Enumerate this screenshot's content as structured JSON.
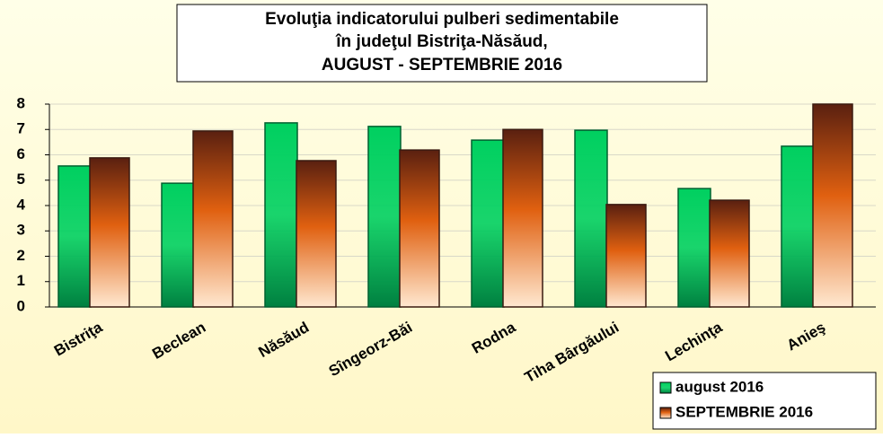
{
  "chart_data": {
    "type": "bar",
    "title": [
      "Evoluţia indicatorului pulberi sedimentabile",
      "în judeţul Bistriţa-Năsăud,",
      "AUGUST - SEPTEMBRIE 2016"
    ],
    "categories": [
      "Bistriţa",
      "Beclean",
      "Năsăud",
      "Sîngeorz-Băi",
      "Rodna",
      "Tiha Bârgăului",
      "Lechinţa",
      "Anieş"
    ],
    "series": [
      {
        "name": "august 2016",
        "color": "#00d060",
        "values": [
          5.56,
          4.88,
          7.26,
          7.12,
          6.58,
          6.97,
          4.67,
          6.34
        ]
      },
      {
        "name": "SEPTEMBRIE 2016",
        "color": "#e06010",
        "values": [
          5.88,
          6.94,
          5.77,
          6.19,
          7.0,
          4.04,
          4.21,
          8.0
        ]
      }
    ],
    "ylim": [
      0,
      8
    ],
    "yticks": [
      0,
      1,
      2,
      3,
      4,
      5,
      6,
      7,
      8
    ],
    "grid": true,
    "legend": "bottom-right"
  }
}
